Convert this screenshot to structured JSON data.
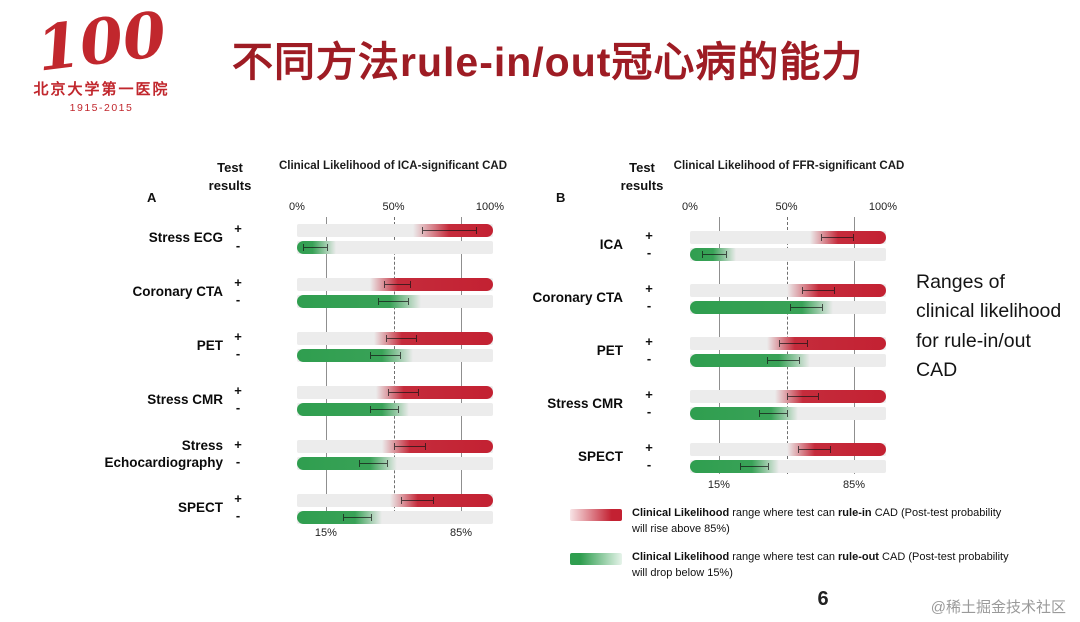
{
  "slide": {
    "title": "不同方法rule-in/out冠心病的能力",
    "page_number": "6",
    "watermark": "@稀土掘金技术社区",
    "side_note": "Ranges of clinical likelihood for rule-in/out CAD",
    "logo": {
      "number": "100",
      "hospital": "北京大学第一医院",
      "years": "1915-2015"
    }
  },
  "signs": {
    "positive": "+",
    "negative": "-"
  },
  "colors": {
    "title": "#9e1c24",
    "logo_red": "#c1272d",
    "rule_in": "#c32132",
    "rule_out": "#2f9e4f",
    "reference_line": "#8f8f8f",
    "track": "#ececec"
  },
  "legend": [
    {
      "lead": "Clinical Likelihood",
      "mid": " range where test can ",
      "keyword": "rule-in",
      "rest": " CAD (Post-test probability will rise above 85%)",
      "color": "#c32132"
    },
    {
      "lead": "Clinical Likelihood",
      "mid": " range where test can ",
      "keyword": "rule-out",
      "rest": " CAD (Post-test probability will drop below 15%)",
      "color": "#2f9e4f"
    }
  ],
  "chart_data": [
    {
      "type": "range-bar",
      "panel_label": "A",
      "results_header": "Test results",
      "title": "Clinical Likelihood of ICA-significant CAD",
      "xlim": [
        0,
        100
      ],
      "top_ticks": [
        {
          "label": "0%",
          "value": 0
        },
        {
          "label": "50%",
          "value": 50
        },
        {
          "label": "100%",
          "value": 100
        }
      ],
      "bottom_ticks": [
        {
          "label": "15%",
          "value": 15
        },
        {
          "label": "85%",
          "value": 85
        }
      ],
      "reference_lines": {
        "solid": [
          15,
          85
        ],
        "dashed": [
          50
        ]
      },
      "tests": [
        {
          "name": "Stress ECG",
          "positive": {
            "kind": "rule-in",
            "fade_from": 60,
            "solid_from": 78,
            "end": 100,
            "ci": [
              65,
              92
            ]
          },
          "negative": {
            "kind": "rule-out",
            "start": 0,
            "solid_to": 8,
            "fade_to": 20,
            "ci": [
              3,
              15
            ]
          }
        },
        {
          "name": "Coronary CTA",
          "positive": {
            "kind": "rule-in",
            "fade_from": 38,
            "solid_from": 52,
            "end": 100,
            "ci": [
              45,
              58
            ]
          },
          "negative": {
            "kind": "rule-out",
            "start": 0,
            "solid_to": 48,
            "fade_to": 64,
            "ci": [
              42,
              57
            ]
          }
        },
        {
          "name": "PET",
          "positive": {
            "kind": "rule-in",
            "fade_from": 40,
            "solid_from": 54,
            "end": 100,
            "ci": [
              46,
              61
            ]
          },
          "negative": {
            "kind": "rule-out",
            "start": 0,
            "solid_to": 44,
            "fade_to": 60,
            "ci": [
              38,
              53
            ]
          }
        },
        {
          "name": "Stress CMR",
          "positive": {
            "kind": "rule-in",
            "fade_from": 41,
            "solid_from": 55,
            "end": 100,
            "ci": [
              47,
              62
            ]
          },
          "negative": {
            "kind": "rule-out",
            "start": 0,
            "solid_to": 44,
            "fade_to": 58,
            "ci": [
              38,
              52
            ]
          }
        },
        {
          "name": "Stress Echocardiography",
          "positive": {
            "kind": "rule-in",
            "fade_from": 44,
            "solid_from": 58,
            "end": 100,
            "ci": [
              50,
              66
            ]
          },
          "negative": {
            "kind": "rule-out",
            "start": 0,
            "solid_to": 38,
            "fade_to": 52,
            "ci": [
              32,
              46
            ]
          }
        },
        {
          "name": "SPECT",
          "positive": {
            "kind": "rule-in",
            "fade_from": 48,
            "solid_from": 62,
            "end": 100,
            "ci": [
              54,
              70
            ]
          },
          "negative": {
            "kind": "rule-out",
            "start": 0,
            "solid_to": 30,
            "fade_to": 44,
            "ci": [
              24,
              38
            ]
          }
        }
      ]
    },
    {
      "type": "range-bar",
      "panel_label": "B",
      "results_header": "Test results",
      "title": "Clinical Likelihood of FFR-significant CAD",
      "xlim": [
        0,
        100
      ],
      "top_ticks": [
        {
          "label": "0%",
          "value": 0
        },
        {
          "label": "50%",
          "value": 50
        },
        {
          "label": "100%",
          "value": 100
        }
      ],
      "bottom_ticks": [
        {
          "label": "15%",
          "value": 15
        },
        {
          "label": "85%",
          "value": 85
        }
      ],
      "reference_lines": {
        "solid": [
          15,
          85
        ],
        "dashed": [
          50
        ]
      },
      "tests": [
        {
          "name": "ICA",
          "positive": {
            "kind": "rule-in",
            "fade_from": 62,
            "solid_from": 76,
            "end": 100,
            "ci": [
              68,
              84
            ]
          },
          "negative": {
            "kind": "rule-out",
            "start": 0,
            "solid_to": 12,
            "fade_to": 24,
            "ci": [
              6,
              18
            ]
          }
        },
        {
          "name": "Coronary CTA",
          "positive": {
            "kind": "rule-in",
            "fade_from": 50,
            "solid_from": 66,
            "end": 100,
            "ci": [
              58,
              74
            ]
          },
          "negative": {
            "kind": "rule-out",
            "start": 0,
            "solid_to": 58,
            "fade_to": 74,
            "ci": [
              52,
              68
            ]
          }
        },
        {
          "name": "PET",
          "positive": {
            "kind": "rule-in",
            "fade_from": 40,
            "solid_from": 54,
            "end": 100,
            "ci": [
              46,
              60
            ]
          },
          "negative": {
            "kind": "rule-out",
            "start": 0,
            "solid_to": 46,
            "fade_to": 62,
            "ci": [
              40,
              56
            ]
          }
        },
        {
          "name": "Stress CMR",
          "positive": {
            "kind": "rule-in",
            "fade_from": 44,
            "solid_from": 58,
            "end": 100,
            "ci": [
              50,
              66
            ]
          },
          "negative": {
            "kind": "rule-out",
            "start": 0,
            "solid_to": 42,
            "fade_to": 56,
            "ci": [
              36,
              50
            ]
          }
        },
        {
          "name": "SPECT",
          "positive": {
            "kind": "rule-in",
            "fade_from": 50,
            "solid_from": 64,
            "end": 100,
            "ci": [
              56,
              72
            ]
          },
          "negative": {
            "kind": "rule-out",
            "start": 0,
            "solid_to": 32,
            "fade_to": 46,
            "ci": [
              26,
              40
            ]
          }
        }
      ]
    }
  ]
}
